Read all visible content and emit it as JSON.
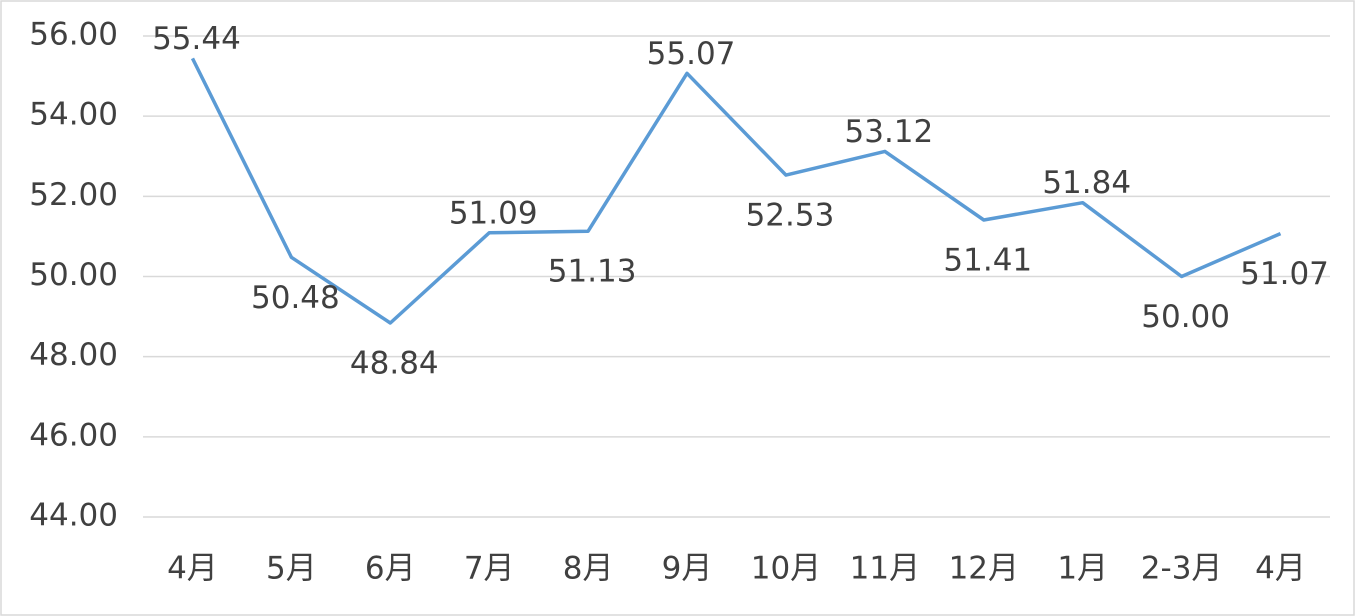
{
  "chart_data": {
    "type": "line",
    "categories": [
      "4月",
      "5月",
      "6月",
      "7月",
      "8月",
      "9月",
      "10月",
      "11月",
      "12月",
      "1月",
      "2-3月",
      "4月"
    ],
    "series": [
      {
        "color": "#5b9bd5",
        "values": [
          55.44,
          50.48,
          48.84,
          51.09,
          51.13,
          55.07,
          52.53,
          53.12,
          51.41,
          51.84,
          50.0,
          51.07
        ],
        "value_labels": [
          "55.44",
          "50.48",
          "48.84",
          "51.09",
          "51.13",
          "55.07",
          "52.53",
          "53.12",
          "51.41",
          "51.84",
          "50.00",
          "51.07"
        ]
      }
    ],
    "ylim": [
      44,
      56
    ],
    "yticks": [
      {
        "value": 44,
        "label": "44.00"
      },
      {
        "value": 46,
        "label": "46.00"
      },
      {
        "value": 48,
        "label": "48.00"
      },
      {
        "value": 50,
        "label": "50.00"
      },
      {
        "value": 52,
        "label": "52.00"
      },
      {
        "value": 54,
        "label": "54.00"
      },
      {
        "value": 56,
        "label": "56.00"
      }
    ],
    "grid": true
  }
}
